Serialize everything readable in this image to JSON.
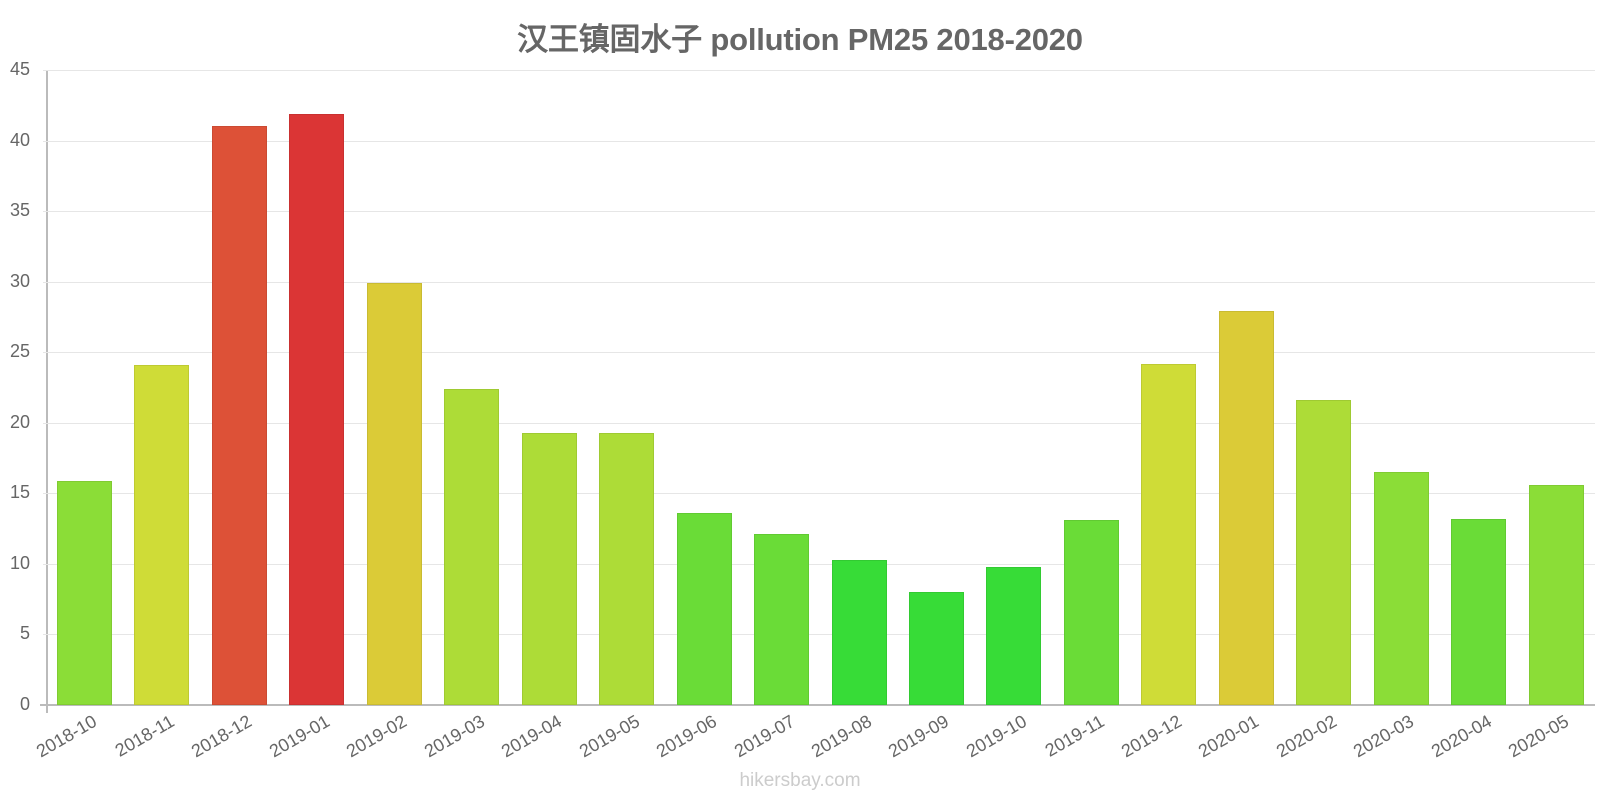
{
  "title": "汉王镇固水子 pollution PM25 2018-2020",
  "footer": "hikersbay.com",
  "chart_data": {
    "type": "bar",
    "title": "汉王镇固水子 pollution PM25 2018-2020",
    "xlabel": "",
    "ylabel": "",
    "ylim": [
      0,
      45
    ],
    "yticks": [
      0,
      5,
      10,
      15,
      20,
      25,
      30,
      35,
      40,
      45
    ],
    "grid": true,
    "legend": "none",
    "categories": [
      "2018-10",
      "2018-11",
      "2018-12",
      "2019-01",
      "2019-02",
      "2019-03",
      "2019-04",
      "2019-05",
      "2019-06",
      "2019-07",
      "2019-08",
      "2019-09",
      "2019-10",
      "2019-11",
      "2019-12",
      "2020-01",
      "2020-02",
      "2020-03",
      "2020-04",
      "2020-05"
    ],
    "values": [
      15.9,
      24.1,
      41.0,
      41.9,
      29.9,
      22.4,
      19.3,
      19.3,
      13.6,
      12.1,
      10.3,
      8.0,
      9.8,
      13.1,
      24.2,
      27.9,
      21.6,
      16.5,
      13.2,
      15.6
    ],
    "colors": [
      "#8bdd37",
      "#cfdc37",
      "#dd5137",
      "#db3535",
      "#dbcb37",
      "#addc37",
      "#addc37",
      "#addc37",
      "#6adc37",
      "#6adc37",
      "#37dc37",
      "#37dc37",
      "#37dc37",
      "#6adc37",
      "#cfdc37",
      "#dbcb37",
      "#addc37",
      "#8bdd37",
      "#6adc37",
      "#8bdd37"
    ]
  }
}
